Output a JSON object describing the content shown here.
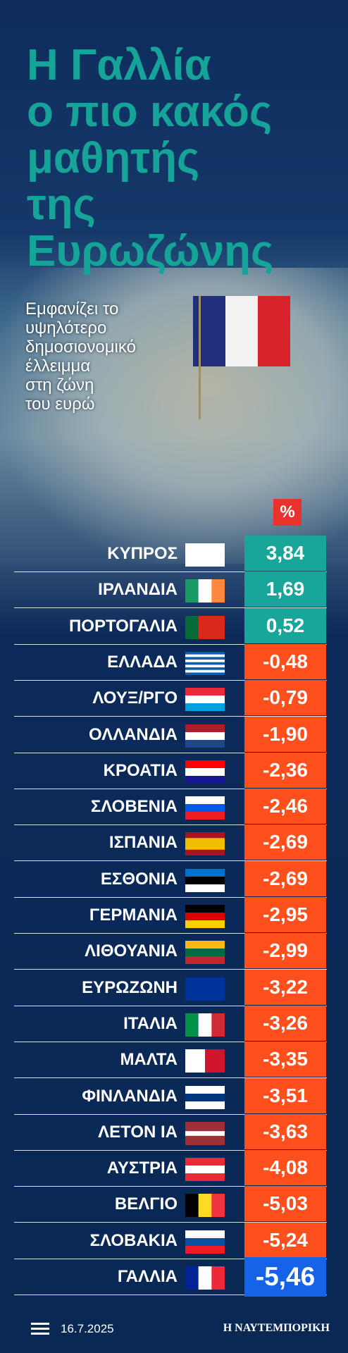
{
  "header": {
    "title_lines": [
      "Η Γαλλία",
      "ο πιο κακός",
      "μαθητής",
      "της",
      "Ευρωζώνης"
    ],
    "subtitle_lines": [
      "Εμφανίζει το",
      "υψηλότερο",
      "δημοσιονομικό",
      "έλλειμμα",
      "στη ζώνη",
      "του ευρώ"
    ],
    "unit": "%"
  },
  "table": {
    "rows": [
      [
        "ΚΥΠΡΟΣ",
        "3,84"
      ],
      [
        "ΙΡΛΑΝΔΙΑ",
        "1,69"
      ],
      [
        "ΠΟΡΤΟΓΑΛΙΑ",
        "0,52"
      ],
      [
        "ΕΛΛΑΔΑ",
        "-0,48"
      ],
      [
        "ΛΟΥΞ/ΡΓΟ",
        "-0,79"
      ],
      [
        "ΟΛΛΑΝΔΙΑ",
        "-1,90"
      ],
      [
        "ΚΡΟΑΤΙΑ",
        "-2,36"
      ],
      [
        "ΣΛΟΒΕΝΙΑ",
        "-2,46"
      ],
      [
        "ΙΣΠΑΝΙΑ",
        "-2,69"
      ],
      [
        "ΕΣΘΟΝΙΑ",
        "-2,69"
      ],
      [
        "ΓΕΡΜΑΝΙΑ",
        "-2,95"
      ],
      [
        "ΛΙΘΟΥΑΝΙΑ",
        "-2,99"
      ],
      [
        "ΕΥΡΩΖΩΝΗ",
        "-3,22"
      ],
      [
        "ΙΤΑΛΙΑ",
        "-3,26"
      ],
      [
        "ΜΑΛΤΑ",
        "-3,35"
      ],
      [
        "ΦΙΝΛΑΝΔΙΑ",
        "-3,51"
      ],
      [
        "ΛΕΤΟΝ ΙΑ",
        "-3,63"
      ],
      [
        "ΑΥΣΤΡΙΑ",
        "-4,08"
      ],
      [
        "ΒΕΛΓΙΟ",
        "-5,03"
      ],
      [
        "ΣΛΟΒΑΚΙΑ",
        "-5,24"
      ],
      [
        "ΓΑΛΛΙΑ",
        "-5,46"
      ]
    ]
  },
  "footer": {
    "date": "16.7.2025",
    "logo": "Η ΝΑΥΤΕΜΠΟΡΙΚΗ"
  }
}
